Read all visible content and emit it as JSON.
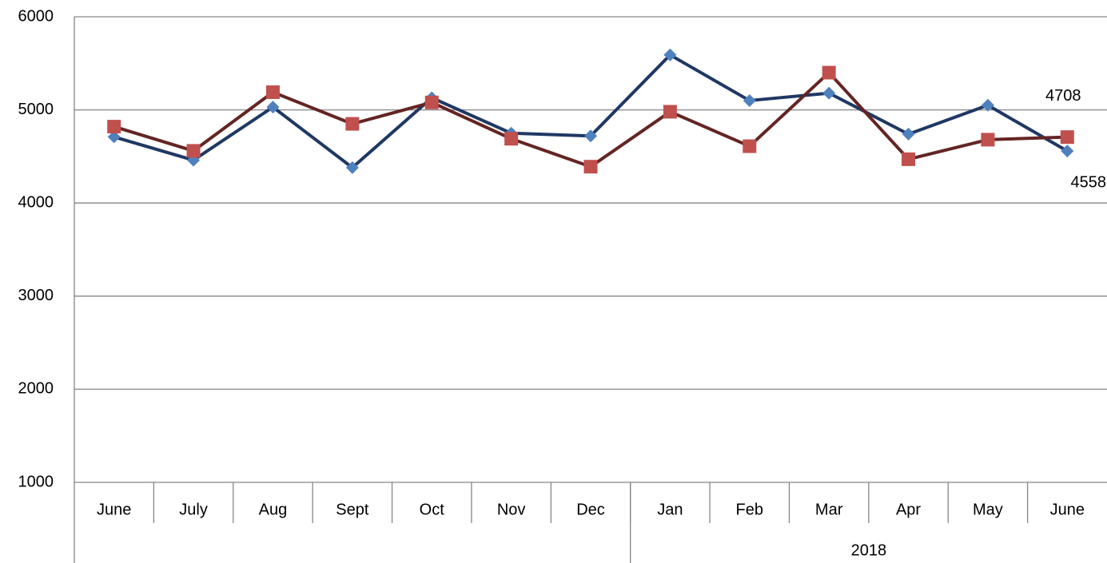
{
  "chart_data": {
    "type": "line",
    "categories": [
      "June",
      "July",
      "Aug",
      "Sept",
      "Oct",
      "Nov",
      "Dec",
      "Jan",
      "Feb",
      "Mar",
      "Apr",
      "May",
      "June"
    ],
    "groups": [
      {
        "label": "2018",
        "from": 7,
        "to": 12
      }
    ],
    "series": [
      {
        "color": "#1f3864",
        "marker_color": "#4f81bd",
        "marker": "diamond",
        "values": [
          4710,
          4460,
          5030,
          4380,
          5130,
          4750,
          4720,
          5590,
          5100,
          5180,
          4740,
          5050,
          4558
        ]
      },
      {
        "color": "#632523",
        "marker_color": "#c0504d",
        "marker": "square",
        "values": [
          4820,
          4560,
          5190,
          4850,
          5080,
          4690,
          4390,
          4980,
          4610,
          5400,
          4470,
          4680,
          4708
        ]
      }
    ],
    "data_labels": "last",
    "ylim": [
      1000,
      6000
    ],
    "yticks": [
      1000,
      2000,
      3000,
      4000,
      5000,
      6000
    ],
    "grid": true
  }
}
